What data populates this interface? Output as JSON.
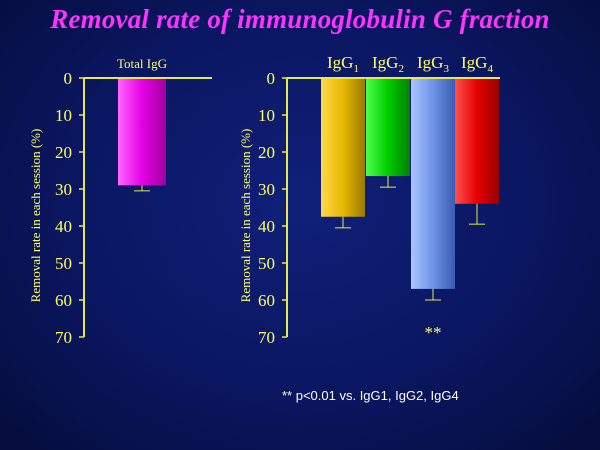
{
  "slide": {
    "title": "Removal rate of immunoglobulin G fraction",
    "footnote": "** p<0.01 vs. IgG1, IgG2, IgG4"
  },
  "colors": {
    "axis": "#e8e84a",
    "text": "#ffff66",
    "title": "#ff33ff",
    "background": "#0a1660"
  },
  "chart_data": [
    {
      "type": "bar",
      "categories": [
        "Total IgG"
      ],
      "values": [
        29
      ],
      "errors": [
        1.5
      ],
      "ylabel": "Removal rate  in each session (%)",
      "ylim": [
        0,
        70
      ],
      "yticks": [
        0,
        10,
        20,
        30,
        40,
        50,
        60,
        70
      ],
      "y_inverted": true,
      "colors": [
        "#e600e6"
      ]
    },
    {
      "type": "bar",
      "categories": [
        "IgG1",
        "IgG2",
        "IgG3",
        "IgG4"
      ],
      "category_labels": [
        {
          "base": "IgG",
          "sub": "1"
        },
        {
          "base": "IgG",
          "sub": "2"
        },
        {
          "base": "IgG",
          "sub": "3"
        },
        {
          "base": "IgG",
          "sub": "4"
        }
      ],
      "values": [
        37.5,
        26.5,
        57,
        34
      ],
      "errors": [
        3,
        3,
        3,
        5.5
      ],
      "annotations": [
        {
          "category": "IgG3",
          "text": "**"
        }
      ],
      "ylabel": "Removal rate  in each session (%)",
      "ylim": [
        0,
        70
      ],
      "yticks": [
        0,
        10,
        20,
        30,
        40,
        50,
        60,
        70
      ],
      "y_inverted": true,
      "colors": [
        "#e6b800",
        "#00cc00",
        "#6f93e8",
        "#e60000"
      ]
    }
  ]
}
